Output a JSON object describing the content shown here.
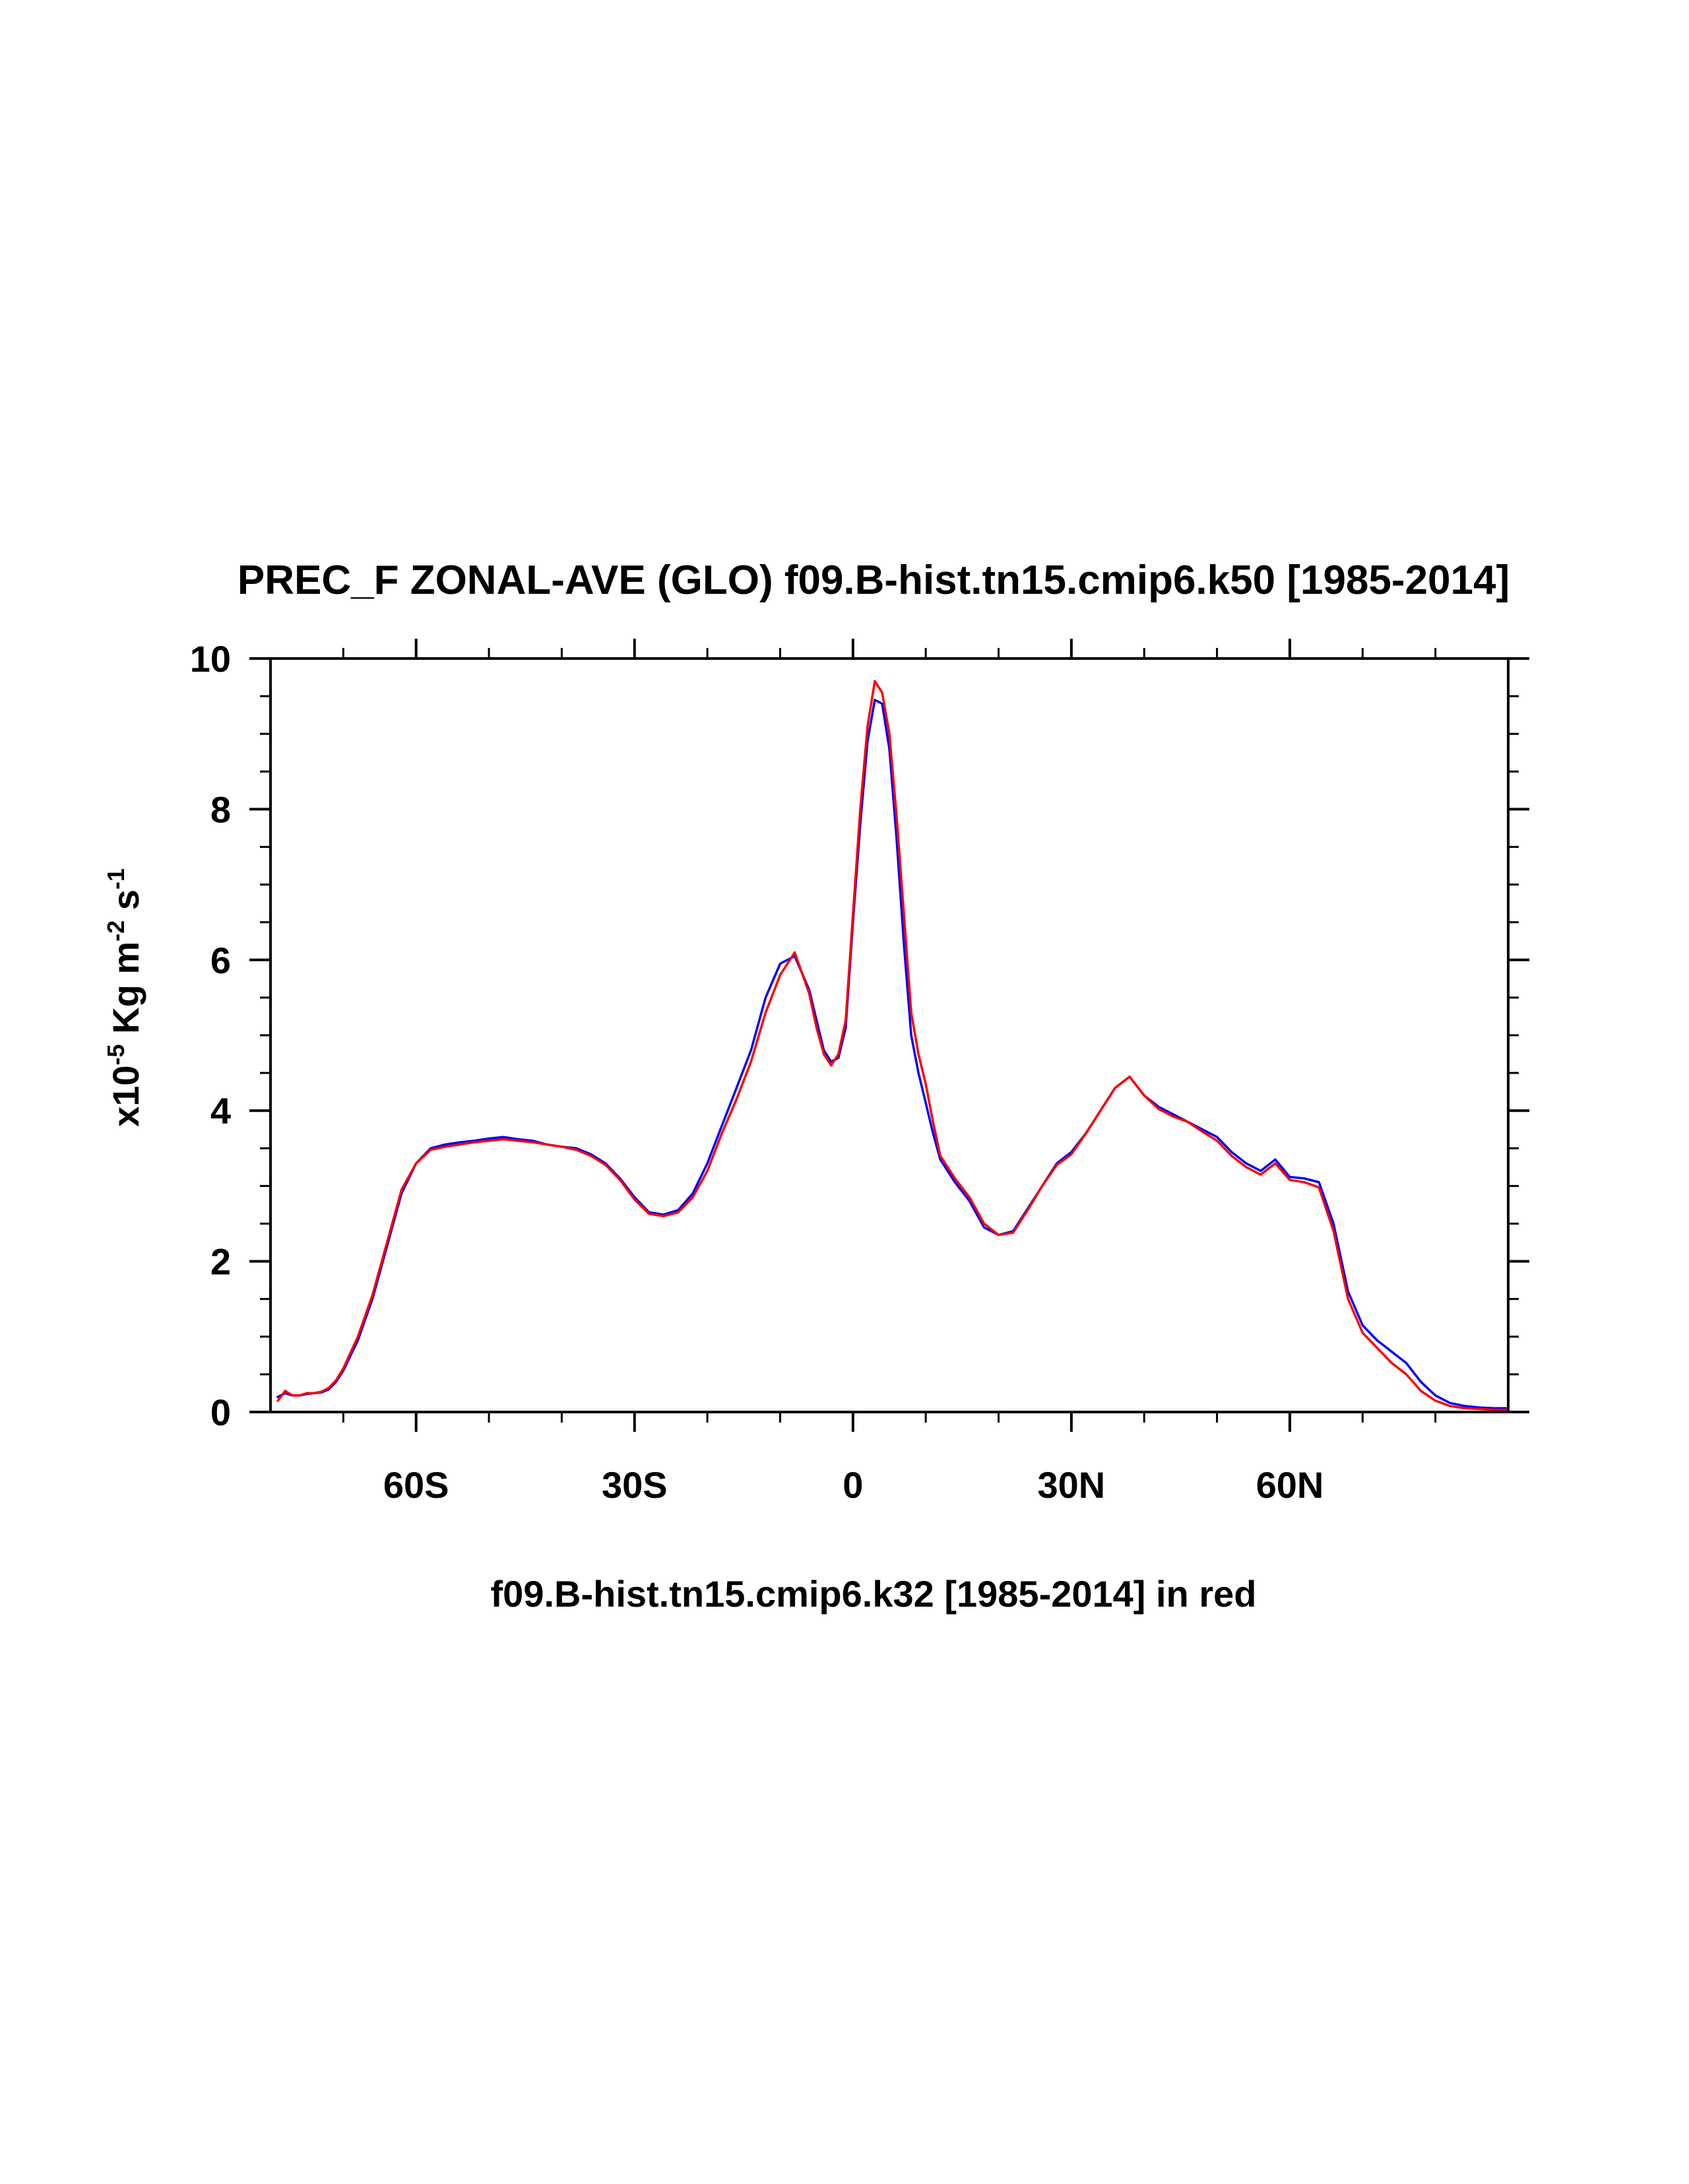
{
  "chart_data": {
    "type": "line",
    "title": "PREC_F ZONAL-AVE (GLO) f09.B-hist.tn15.cmip6.k50 [1985-2014]",
    "xlabel": "f09.B-hist.tn15.cmip6.k32 [1985-2014] in red",
    "ylabel": {
      "prefix": "x10",
      "exp1": "-5",
      "mid": " Kg m",
      "exp2": "-2",
      "mid2": " s",
      "exp3": "-1"
    },
    "xlim": [
      -80,
      90
    ],
    "ylim": [
      0,
      10
    ],
    "xticks": [
      {
        "value": -60,
        "label": "60S"
      },
      {
        "value": -30,
        "label": "30S"
      },
      {
        "value": 0,
        "label": "0"
      },
      {
        "value": 30,
        "label": "30N"
      },
      {
        "value": 60,
        "label": "60N"
      }
    ],
    "yticks": [
      {
        "value": 0,
        "label": "0"
      },
      {
        "value": 2,
        "label": "2"
      },
      {
        "value": 4,
        "label": "4"
      },
      {
        "value": 6,
        "label": "6"
      },
      {
        "value": 8,
        "label": "8"
      },
      {
        "value": 10,
        "label": "10"
      }
    ],
    "grid": false,
    "series": [
      {
        "color": "#0000ff",
        "x": [
          -79,
          -78,
          -77,
          -76,
          -75,
          -74,
          -73,
          -72,
          -71,
          -70,
          -68,
          -66,
          -64,
          -62,
          -60,
          -58,
          -56,
          -54,
          -52,
          -50,
          -48,
          -46,
          -44,
          -42,
          -40,
          -38,
          -36,
          -34,
          -32,
          -30,
          -28,
          -26,
          -24,
          -22,
          -20,
          -18,
          -16,
          -14,
          -12,
          -10,
          -8,
          -6,
          -5,
          -4,
          -3,
          -2,
          -1,
          0,
          1,
          2,
          3,
          4,
          5,
          6,
          7,
          8,
          9,
          10,
          11,
          12,
          13,
          14,
          16,
          18,
          20,
          22,
          24,
          26,
          28,
          30,
          32,
          34,
          36,
          38,
          40,
          42,
          44,
          46,
          48,
          50,
          52,
          54,
          56,
          58,
          60,
          62,
          64,
          66,
          68,
          70,
          72,
          74,
          76,
          78,
          80,
          82,
          84,
          86,
          88,
          90
        ],
        "y": [
          0.2,
          0.25,
          0.22,
          0.22,
          0.24,
          0.25,
          0.26,
          0.3,
          0.4,
          0.55,
          0.95,
          1.5,
          2.2,
          2.9,
          3.3,
          3.5,
          3.55,
          3.58,
          3.6,
          3.63,
          3.65,
          3.62,
          3.6,
          3.55,
          3.52,
          3.5,
          3.42,
          3.3,
          3.1,
          2.85,
          2.65,
          2.62,
          2.68,
          2.9,
          3.3,
          3.8,
          4.3,
          4.8,
          5.5,
          5.95,
          6.05,
          5.6,
          5.2,
          4.8,
          4.65,
          4.7,
          5.1,
          6.5,
          7.8,
          8.9,
          9.45,
          9.4,
          8.8,
          7.6,
          6.2,
          5.0,
          4.5,
          4.1,
          3.7,
          3.35,
          3.2,
          3.05,
          2.8,
          2.45,
          2.35,
          2.4,
          2.7,
          3.0,
          3.3,
          3.45,
          3.7,
          4.0,
          4.3,
          4.45,
          4.2,
          4.05,
          3.95,
          3.85,
          3.75,
          3.65,
          3.45,
          3.3,
          3.2,
          3.35,
          3.12,
          3.1,
          3.05,
          2.5,
          1.6,
          1.15,
          0.95,
          0.8,
          0.65,
          0.4,
          0.22,
          0.12,
          0.08,
          0.06,
          0.05,
          0.05
        ]
      },
      {
        "color": "#ff0000",
        "x": [
          -79,
          -78,
          -77,
          -76,
          -75,
          -74,
          -73,
          -72,
          -71,
          -70,
          -68,
          -66,
          -64,
          -62,
          -60,
          -58,
          -56,
          -54,
          -52,
          -50,
          -48,
          -46,
          -44,
          -42,
          -40,
          -38,
          -36,
          -34,
          -32,
          -30,
          -28,
          -26,
          -24,
          -22,
          -20,
          -18,
          -16,
          -14,
          -12,
          -10,
          -8,
          -6,
          -5,
          -4,
          -3,
          -2,
          -1,
          0,
          1,
          2,
          3,
          4,
          5,
          6,
          7,
          8,
          9,
          10,
          11,
          12,
          13,
          14,
          16,
          18,
          20,
          22,
          24,
          26,
          28,
          30,
          32,
          34,
          36,
          38,
          40,
          42,
          44,
          46,
          48,
          50,
          52,
          54,
          56,
          58,
          60,
          62,
          64,
          66,
          68,
          70,
          72,
          74,
          76,
          78,
          80,
          82,
          84,
          86,
          88,
          90
        ],
        "y": [
          0.15,
          0.28,
          0.22,
          0.22,
          0.25,
          0.25,
          0.27,
          0.32,
          0.42,
          0.58,
          1.0,
          1.55,
          2.25,
          2.95,
          3.3,
          3.48,
          3.52,
          3.55,
          3.58,
          3.6,
          3.62,
          3.6,
          3.58,
          3.55,
          3.52,
          3.48,
          3.4,
          3.28,
          3.08,
          2.82,
          2.63,
          2.6,
          2.65,
          2.85,
          3.2,
          3.7,
          4.15,
          4.65,
          5.3,
          5.8,
          6.1,
          5.55,
          5.1,
          4.75,
          4.6,
          4.75,
          5.2,
          6.6,
          8.0,
          9.1,
          9.7,
          9.55,
          9.0,
          7.9,
          6.6,
          5.3,
          4.75,
          4.35,
          3.85,
          3.4,
          3.25,
          3.1,
          2.85,
          2.5,
          2.35,
          2.38,
          2.68,
          3.0,
          3.28,
          3.42,
          3.7,
          4.0,
          4.3,
          4.45,
          4.2,
          4.02,
          3.92,
          3.85,
          3.72,
          3.6,
          3.4,
          3.25,
          3.15,
          3.3,
          3.08,
          3.05,
          2.98,
          2.4,
          1.5,
          1.05,
          0.85,
          0.65,
          0.5,
          0.28,
          0.15,
          0.08,
          0.05,
          0.04,
          0.03,
          0.03
        ]
      }
    ]
  }
}
